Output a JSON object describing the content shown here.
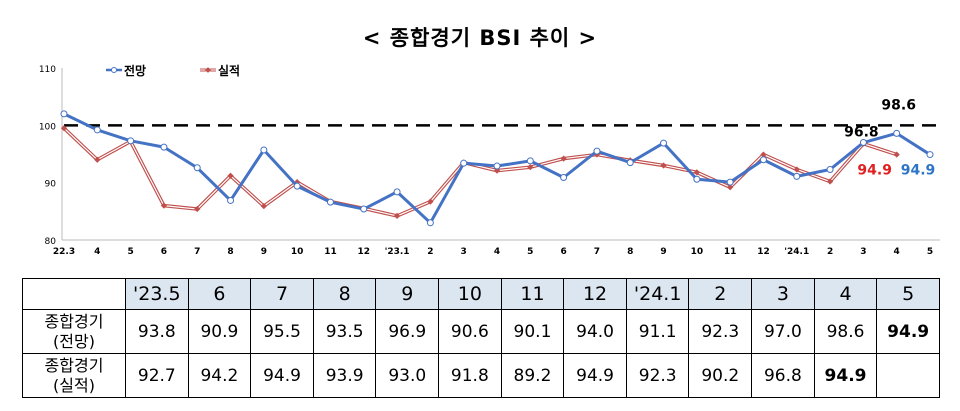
{
  "title": "< 종합경기 BSI 추이 >",
  "chart_data": {
    "type": "line",
    "ylim": [
      80,
      110
    ],
    "y_ticks": [
      "80",
      "90",
      "100",
      "110"
    ],
    "categories": [
      "22.3",
      "4",
      "5",
      "6",
      "7",
      "8",
      "9",
      "10",
      "11",
      "12",
      "'23.1",
      "2",
      "3",
      "4",
      "5",
      "6",
      "7",
      "8",
      "9",
      "10",
      "11",
      "12",
      "'24.1",
      "2",
      "3",
      "4",
      "5"
    ],
    "series": [
      {
        "name": "전망",
        "color": "#4472c4",
        "values": [
          102.0,
          99.2,
          97.3,
          96.2,
          92.6,
          86.9,
          95.7,
          89.4,
          86.6,
          85.4,
          88.4,
          83.0,
          93.4,
          92.9,
          93.8,
          90.9,
          95.5,
          93.5,
          96.9,
          90.6,
          90.1,
          94.0,
          91.1,
          92.3,
          97.0,
          98.6,
          94.9
        ]
      },
      {
        "name": "실적",
        "color": "#c0504d",
        "values": [
          99.5,
          94.0,
          97.2,
          86.0,
          85.4,
          91.2,
          85.9,
          90.1,
          86.7,
          85.5,
          84.2,
          86.7,
          93.5,
          92.1,
          92.7,
          94.2,
          94.9,
          93.9,
          93.0,
          91.8,
          89.2,
          94.9,
          92.3,
          90.2,
          96.8,
          94.9,
          null
        ]
      }
    ],
    "reference_line": 100,
    "annotations": [
      {
        "text": "96.8",
        "color": "#000000"
      },
      {
        "text": "98.6",
        "color": "#000000"
      },
      {
        "text": "94.9",
        "color": "#e02020"
      },
      {
        "text": "94.9",
        "color": "#2e75c6"
      }
    ],
    "legend": "top-left",
    "grid": false
  },
  "table": {
    "header": [
      "'23.5",
      "6",
      "7",
      "8",
      "9",
      "10",
      "11",
      "12",
      "'24.1",
      "2",
      "3",
      "4",
      "5"
    ],
    "rows": [
      {
        "label_line1": "종합경기",
        "label_line2": "(전망)",
        "values": [
          "93.8",
          "90.9",
          "95.5",
          "93.5",
          "96.9",
          "90.6",
          "90.1",
          "94.0",
          "91.1",
          "92.3",
          "97.0",
          "98.6",
          "94.9"
        ],
        "bold": [
          false,
          false,
          false,
          false,
          false,
          false,
          false,
          false,
          false,
          false,
          false,
          false,
          true
        ]
      },
      {
        "label_line1": "종합경기",
        "label_line2": "(실적)",
        "values": [
          "92.7",
          "94.2",
          "94.9",
          "93.9",
          "93.0",
          "91.8",
          "89.2",
          "94.9",
          "92.3",
          "90.2",
          "96.8",
          "94.9",
          ""
        ],
        "bold": [
          false,
          false,
          false,
          false,
          false,
          false,
          false,
          false,
          false,
          false,
          false,
          true,
          false
        ]
      }
    ]
  }
}
